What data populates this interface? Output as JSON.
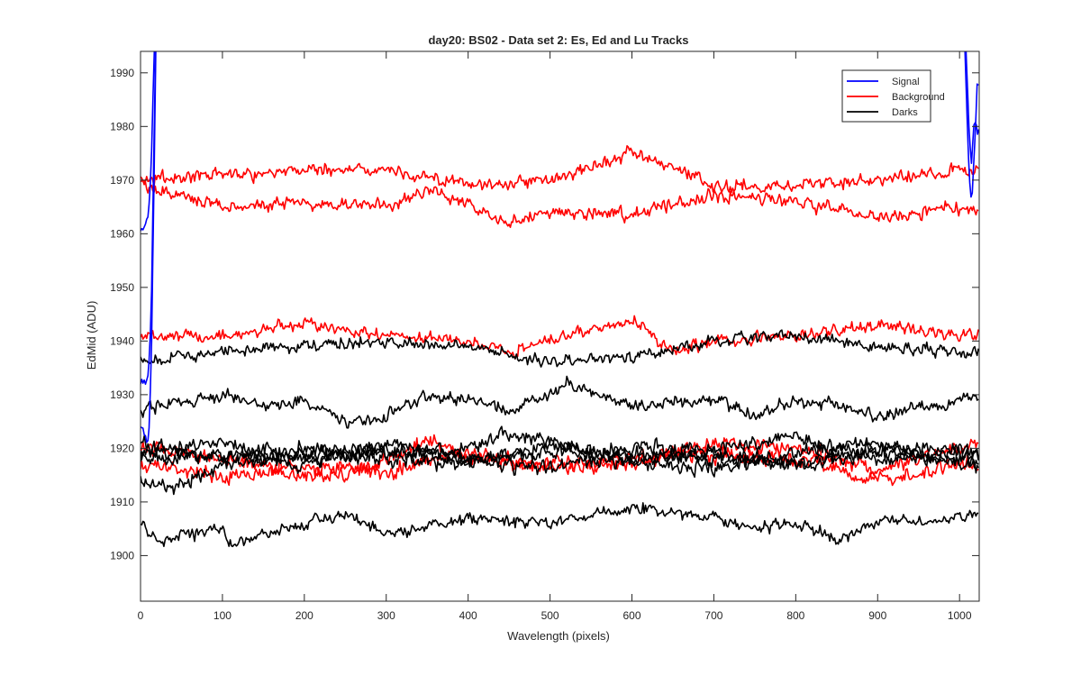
{
  "chart_data": {
    "type": "line",
    "title": "day20: BS02 - Data set 2: Es, Ed and Lu Tracks",
    "xlabel": "Wavelength (pixels)",
    "ylabel": "EdMid (ADU)",
    "xlim": [
      0,
      1024
    ],
    "ylim": [
      1891.5,
      1994
    ],
    "xticks": [
      0,
      100,
      200,
      300,
      400,
      500,
      600,
      700,
      800,
      900,
      1000
    ],
    "yticks": [
      1900,
      1910,
      1920,
      1930,
      1940,
      1950,
      1960,
      1970,
      1980,
      1990
    ],
    "grid": false,
    "legend_position": "top-right",
    "legend": [
      {
        "label": "Signal",
        "color": "#0000ff"
      },
      {
        "label": "Background",
        "color": "#ff0000"
      },
      {
        "label": "Darks",
        "color": "#000000"
      }
    ],
    "series": [
      {
        "group": "Signal",
        "color": "#0000ff",
        "noise": 0.5,
        "points": [
          [
            0,
            1961
          ],
          [
            5,
            1961
          ],
          [
            10,
            1964
          ],
          [
            13,
            1972
          ],
          [
            16,
            1990
          ],
          [
            20,
            2010
          ]
        ]
      },
      {
        "group": "Signal",
        "color": "#0000ff",
        "noise": 0.8,
        "points": [
          [
            0,
            1932
          ],
          [
            6,
            1932
          ],
          [
            10,
            1934
          ],
          [
            13,
            1945
          ],
          [
            16,
            1972
          ],
          [
            20,
            2010
          ]
        ]
      },
      {
        "group": "Signal",
        "color": "#0000ff",
        "noise": 0.8,
        "points": [
          [
            0,
            1924
          ],
          [
            6,
            1922
          ],
          [
            10,
            1921
          ],
          [
            13,
            1935
          ],
          [
            16,
            1965
          ],
          [
            20,
            2010
          ]
        ]
      },
      {
        "group": "Signal",
        "color": "#0000ff",
        "noise": 1.0,
        "points": [
          [
            1002,
            2010
          ],
          [
            1008,
            1988
          ],
          [
            1012,
            1970
          ],
          [
            1015,
            1965
          ],
          [
            1018,
            1975
          ],
          [
            1022,
            1990
          ],
          [
            1024,
            1985
          ]
        ]
      },
      {
        "group": "Signal",
        "color": "#0000ff",
        "noise": 1.0,
        "points": [
          [
            1004,
            2010
          ],
          [
            1010,
            1985
          ],
          [
            1014,
            1972
          ],
          [
            1018,
            1982
          ],
          [
            1024,
            1978
          ]
        ]
      },
      {
        "group": "Background",
        "color": "#ff0000",
        "noise": 1.1,
        "points": [
          [
            0,
            1970
          ],
          [
            100,
            1971
          ],
          [
            200,
            1972
          ],
          [
            300,
            1972
          ],
          [
            400,
            1969
          ],
          [
            500,
            1970
          ],
          [
            600,
            1975
          ],
          [
            700,
            1969
          ],
          [
            800,
            1969
          ],
          [
            900,
            1970
          ],
          [
            1000,
            1972
          ],
          [
            1024,
            1972
          ]
        ]
      },
      {
        "group": "Background",
        "color": "#ff0000",
        "noise": 1.1,
        "points": [
          [
            0,
            1969
          ],
          [
            100,
            1965
          ],
          [
            200,
            1966
          ],
          [
            300,
            1965
          ],
          [
            350,
            1968
          ],
          [
            400,
            1966
          ],
          [
            450,
            1962
          ],
          [
            500,
            1964
          ],
          [
            600,
            1964
          ],
          [
            700,
            1967
          ],
          [
            800,
            1966
          ],
          [
            900,
            1963
          ],
          [
            1000,
            1965
          ],
          [
            1024,
            1964
          ]
        ]
      },
      {
        "group": "Background",
        "color": "#ff0000",
        "noise": 1.0,
        "points": [
          [
            0,
            1941
          ],
          [
            100,
            1941
          ],
          [
            200,
            1943
          ],
          [
            300,
            1941
          ],
          [
            400,
            1940
          ],
          [
            450,
            1938
          ],
          [
            500,
            1940
          ],
          [
            600,
            1944
          ],
          [
            650,
            1938
          ],
          [
            700,
            1940
          ],
          [
            800,
            1941
          ],
          [
            900,
            1943
          ],
          [
            1000,
            1941
          ],
          [
            1024,
            1941
          ]
        ]
      },
      {
        "group": "Background",
        "color": "#ff0000",
        "noise": 1.3,
        "points": [
          [
            0,
            1920
          ],
          [
            100,
            1918
          ],
          [
            200,
            1916
          ],
          [
            300,
            1917
          ],
          [
            350,
            1922
          ],
          [
            400,
            1918
          ],
          [
            500,
            1917
          ],
          [
            600,
            1917
          ],
          [
            700,
            1921
          ],
          [
            800,
            1920
          ],
          [
            900,
            1916
          ],
          [
            1000,
            1920
          ],
          [
            1024,
            1920
          ]
        ]
      },
      {
        "group": "Background",
        "color": "#ff0000",
        "noise": 1.3,
        "points": [
          [
            0,
            1917
          ],
          [
            100,
            1915
          ],
          [
            200,
            1915
          ],
          [
            300,
            1916
          ],
          [
            400,
            1919
          ],
          [
            500,
            1916
          ],
          [
            600,
            1918
          ],
          [
            700,
            1919
          ],
          [
            800,
            1918
          ],
          [
            900,
            1914
          ],
          [
            1000,
            1917
          ],
          [
            1024,
            1917
          ]
        ]
      },
      {
        "group": "Darks",
        "color": "#000000",
        "noise": 1.0,
        "points": [
          [
            0,
            1936
          ],
          [
            100,
            1938
          ],
          [
            200,
            1939
          ],
          [
            300,
            1940
          ],
          [
            400,
            1939
          ],
          [
            500,
            1936
          ],
          [
            600,
            1937
          ],
          [
            700,
            1940
          ],
          [
            800,
            1941
          ],
          [
            900,
            1939
          ],
          [
            1000,
            1938
          ],
          [
            1024,
            1938
          ]
        ]
      },
      {
        "group": "Darks",
        "color": "#000000",
        "noise": 1.0,
        "points": [
          [
            0,
            1927
          ],
          [
            100,
            1930
          ],
          [
            150,
            1928
          ],
          [
            200,
            1929
          ],
          [
            250,
            1925
          ],
          [
            300,
            1926
          ],
          [
            350,
            1930
          ],
          [
            400,
            1929
          ],
          [
            450,
            1927
          ],
          [
            520,
            1932
          ],
          [
            600,
            1928
          ],
          [
            700,
            1929
          ],
          [
            750,
            1926
          ],
          [
            800,
            1929
          ],
          [
            850,
            1928
          ],
          [
            900,
            1926
          ],
          [
            1000,
            1929
          ],
          [
            1024,
            1930
          ]
        ]
      },
      {
        "group": "Darks",
        "color": "#000000",
        "noise": 1.2,
        "points": [
          [
            0,
            1918
          ],
          [
            100,
            1919
          ],
          [
            200,
            1917
          ],
          [
            300,
            1921
          ],
          [
            400,
            1918
          ],
          [
            500,
            1919
          ],
          [
            600,
            1920
          ],
          [
            700,
            1920
          ],
          [
            800,
            1922
          ],
          [
            900,
            1918
          ],
          [
            1000,
            1919
          ],
          [
            1024,
            1918
          ]
        ]
      },
      {
        "group": "Darks",
        "color": "#000000",
        "noise": 1.2,
        "points": [
          [
            0,
            1921
          ],
          [
            100,
            1918
          ],
          [
            200,
            1920
          ],
          [
            300,
            1919
          ],
          [
            400,
            1920
          ],
          [
            450,
            1923
          ],
          [
            500,
            1921
          ],
          [
            600,
            1918
          ],
          [
            700,
            1919
          ],
          [
            800,
            1917
          ],
          [
            900,
            1920
          ],
          [
            1000,
            1920
          ],
          [
            1024,
            1919
          ]
        ]
      },
      {
        "group": "Darks",
        "color": "#000000",
        "noise": 1.2,
        "points": [
          [
            0,
            1915
          ],
          [
            30,
            1912
          ],
          [
            100,
            1917
          ],
          [
            200,
            1919
          ],
          [
            300,
            1918
          ],
          [
            400,
            1917
          ],
          [
            500,
            1921
          ],
          [
            600,
            1917
          ],
          [
            700,
            1916
          ],
          [
            800,
            1919
          ],
          [
            900,
            1921
          ],
          [
            1000,
            1917
          ],
          [
            1024,
            1917
          ]
        ]
      },
      {
        "group": "Darks",
        "color": "#000000",
        "noise": 1.2,
        "points": [
          [
            0,
            1919
          ],
          [
            100,
            1921
          ],
          [
            200,
            1918
          ],
          [
            300,
            1920
          ],
          [
            400,
            1918
          ],
          [
            500,
            1916
          ],
          [
            600,
            1919
          ],
          [
            700,
            1918
          ],
          [
            800,
            1917
          ],
          [
            900,
            1919
          ],
          [
            1000,
            1918
          ],
          [
            1024,
            1917
          ]
        ]
      },
      {
        "group": "Darks",
        "color": "#000000",
        "noise": 1.0,
        "points": [
          [
            0,
            1906
          ],
          [
            20,
            1903
          ],
          [
            100,
            1905
          ],
          [
            110,
            1902
          ],
          [
            200,
            1906
          ],
          [
            250,
            1908
          ],
          [
            300,
            1904
          ],
          [
            400,
            1907
          ],
          [
            500,
            1906
          ],
          [
            600,
            1909
          ],
          [
            700,
            1907
          ],
          [
            750,
            1905
          ],
          [
            800,
            1906
          ],
          [
            850,
            1903
          ],
          [
            900,
            1906
          ],
          [
            1000,
            1907
          ],
          [
            1024,
            1908
          ]
        ]
      }
    ]
  }
}
